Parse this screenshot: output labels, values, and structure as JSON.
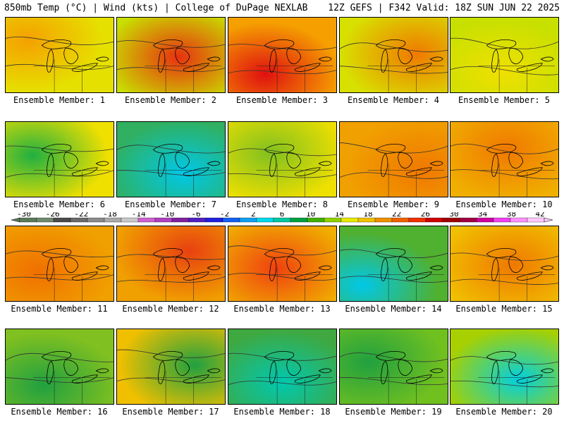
{
  "header": {
    "left_title": "850mb Temp (°C) | Wind (kts) | College of DuPage NEXLAB",
    "right_title": "12Z GEFS | F342 Valid: 18Z SUN JUN 22 2025"
  },
  "panels": [
    {
      "label": "Ensemble Member: 1",
      "base": "#e6e000",
      "warm": "#f5a000"
    },
    {
      "label": "Ensemble Member: 2",
      "base": "#c8e000",
      "warm": "#e83010"
    },
    {
      "label": "Ensemble Member: 3",
      "base": "#f5a000",
      "warm": "#e01010"
    },
    {
      "label": "Ensemble Member: 4",
      "base": "#d8e000",
      "warm": "#f07800"
    },
    {
      "label": "Ensemble Member: 5",
      "base": "#c8e000",
      "warm": "#f0e000"
    },
    {
      "label": "Ensemble Member: 6",
      "base": "#f0e000",
      "warm": "#20b040"
    },
    {
      "label": "Ensemble Member: 7",
      "base": "#30b060",
      "warm": "#00c8e8"
    },
    {
      "label": "Ensemble Member: 8",
      "base": "#f0e000",
      "warm": "#80c020"
    },
    {
      "label": "Ensemble Member: 9",
      "base": "#f0a000",
      "warm": "#f07800"
    },
    {
      "label": "Ensemble Member: 10",
      "base": "#f0b000",
      "warm": "#f07800"
    },
    {
      "label": "Ensemble Member: 11",
      "base": "#f0a000",
      "warm": "#f07000"
    },
    {
      "label": "Ensemble Member: 12",
      "base": "#f0a000",
      "warm": "#e84010"
    },
    {
      "label": "Ensemble Member: 13",
      "base": "#f0b000",
      "warm": "#f04010"
    },
    {
      "label": "Ensemble Member: 14",
      "base": "#50b030",
      "warm": "#00c8e8"
    },
    {
      "label": "Ensemble Member: 15",
      "base": "#f0c000",
      "warm": "#f07800"
    },
    {
      "label": "Ensemble Member: 16",
      "base": "#80c020",
      "warm": "#20a040"
    },
    {
      "label": "Ensemble Member: 17",
      "base": "#f0c000",
      "warm": "#20a040"
    },
    {
      "label": "Ensemble Member: 18",
      "base": "#40a840",
      "warm": "#00c8b0"
    },
    {
      "label": "Ensemble Member: 19",
      "base": "#70c020",
      "warm": "#20a040"
    },
    {
      "label": "Ensemble Member: 20",
      "base": "#a8d000",
      "warm": "#00d0e0"
    }
  ],
  "colorbar": {
    "ticks": [
      "-30",
      "-26",
      "-22",
      "-18",
      "-14",
      "-10",
      "-6",
      "-2",
      "2",
      "6",
      "10",
      "14",
      "18",
      "22",
      "26",
      "30",
      "34",
      "38",
      "42"
    ],
    "colors": [
      "#5a7a5a",
      "#6e8a6e",
      "#4a4a4a",
      "#6a6a6a",
      "#8a8a8a",
      "#aaaaaa",
      "#c8c8c8",
      "#d060d0",
      "#b040c0",
      "#8020a0",
      "#5020c0",
      "#2020e0",
      "#1060f0",
      "#10a0f0",
      "#00d8e8",
      "#00c8a0",
      "#00a040",
      "#40b000",
      "#90d000",
      "#e8e800",
      "#f0c000",
      "#f09000",
      "#f06000",
      "#f03000",
      "#d00000",
      "#a00000",
      "#a00040",
      "#d000a0",
      "#f040f0",
      "#ff90ff",
      "#ffc8ff"
    ]
  }
}
